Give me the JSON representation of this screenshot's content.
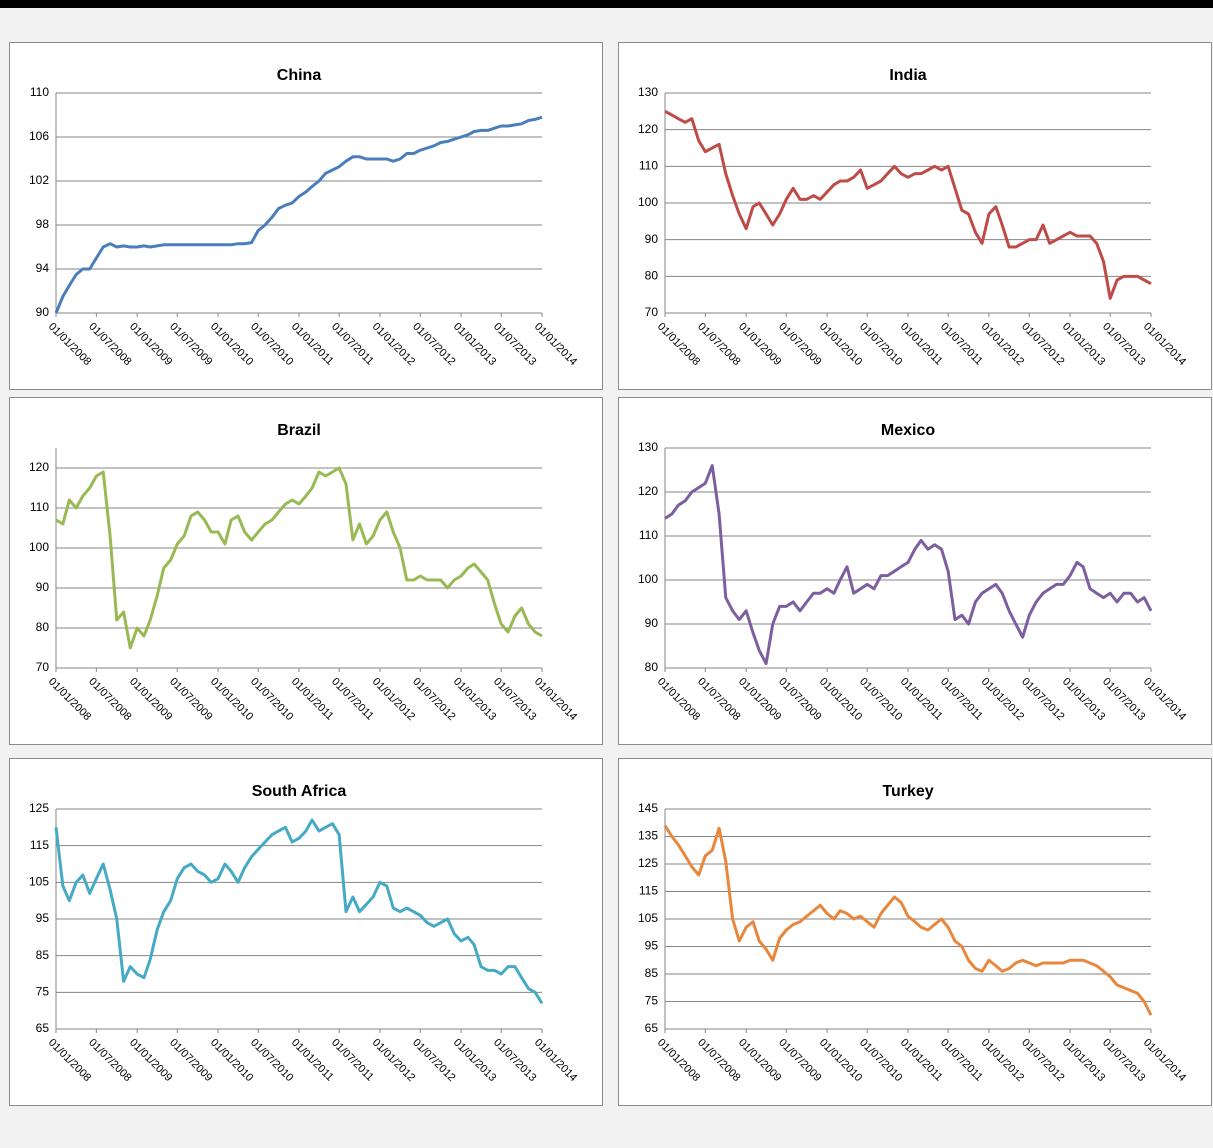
{
  "chart_data": [
    {
      "type": "line",
      "title": "China",
      "color": "#4a7ebb",
      "grid": true,
      "x": [
        "01/01/2008",
        "01/02/2008",
        "01/03/2008",
        "01/04/2008",
        "01/05/2008",
        "01/06/2008",
        "01/07/2008",
        "01/08/2008",
        "01/09/2008",
        "01/10/2008",
        "01/11/2008",
        "01/12/2008",
        "01/01/2009",
        "01/02/2009",
        "01/03/2009",
        "01/04/2009",
        "01/05/2009",
        "01/06/2009",
        "01/07/2009",
        "01/08/2009",
        "01/09/2009",
        "01/10/2009",
        "01/11/2009",
        "01/12/2009",
        "01/01/2010",
        "01/02/2010",
        "01/03/2010",
        "01/04/2010",
        "01/05/2010",
        "01/06/2010",
        "01/07/2010",
        "01/08/2010",
        "01/09/2010",
        "01/10/2010",
        "01/11/2010",
        "01/12/2010",
        "01/01/2011",
        "01/02/2011",
        "01/03/2011",
        "01/04/2011",
        "01/05/2011",
        "01/06/2011",
        "01/07/2011",
        "01/08/2011",
        "01/09/2011",
        "01/10/2011",
        "01/11/2011",
        "01/12/2011",
        "01/01/2012",
        "01/02/2012",
        "01/03/2012",
        "01/04/2012",
        "01/05/2012",
        "01/06/2012",
        "01/07/2012",
        "01/08/2012",
        "01/09/2012",
        "01/10/2012",
        "01/11/2012",
        "01/12/2012",
        "01/01/2013",
        "01/02/2013",
        "01/03/2013",
        "01/04/2013",
        "01/05/2013",
        "01/06/2013",
        "01/07/2013",
        "01/08/2013",
        "01/09/2013",
        "01/10/2013",
        "01/11/2013",
        "01/12/2013",
        "01/01/2014"
      ],
      "values": [
        90,
        91.5,
        92.5,
        93.5,
        94,
        94,
        95,
        96,
        96.3,
        96,
        96.1,
        96,
        96,
        96.1,
        96,
        96.1,
        96.2,
        96.2,
        96.2,
        96.2,
        96.2,
        96.2,
        96.2,
        96.2,
        96.2,
        96.2,
        96.2,
        96.3,
        96.3,
        96.4,
        97.5,
        98,
        98.7,
        99.5,
        99.8,
        100,
        100.6,
        101,
        101.5,
        102,
        102.7,
        103,
        103.3,
        103.8,
        104.2,
        104.2,
        104,
        104,
        104,
        104,
        103.8,
        104,
        104.5,
        104.5,
        104.8,
        105,
        105.2,
        105.5,
        105.6,
        105.8,
        106,
        106.2,
        106.5,
        106.6,
        106.6,
        106.8,
        107,
        107,
        107.1,
        107.2,
        107.5,
        107.6,
        107.8
      ],
      "xlim": [
        "01/01/2008",
        "01/01/2014"
      ],
      "xticks": [
        "01/01/2008",
        "01/07/2008",
        "01/01/2009",
        "01/07/2009",
        "01/01/2010",
        "01/07/2010",
        "01/01/2011",
        "01/07/2011",
        "01/01/2012",
        "01/07/2012",
        "01/01/2013",
        "01/07/2013",
        "01/01/2014"
      ],
      "ylim": [
        90,
        110
      ],
      "yticks": [
        90,
        94,
        98,
        102,
        106,
        110
      ]
    },
    {
      "type": "line",
      "title": "India",
      "color": "#be4b48",
      "grid": true,
      "x": [
        "01/01/2008",
        "01/02/2008",
        "01/03/2008",
        "01/04/2008",
        "01/05/2008",
        "01/06/2008",
        "01/07/2008",
        "01/08/2008",
        "01/09/2008",
        "01/10/2008",
        "01/11/2008",
        "01/12/2008",
        "01/01/2009",
        "01/02/2009",
        "01/03/2009",
        "01/04/2009",
        "01/05/2009",
        "01/06/2009",
        "01/07/2009",
        "01/08/2009",
        "01/09/2009",
        "01/10/2009",
        "01/11/2009",
        "01/12/2009",
        "01/01/2010",
        "01/02/2010",
        "01/03/2010",
        "01/04/2010",
        "01/05/2010",
        "01/06/2010",
        "01/07/2010",
        "01/08/2010",
        "01/09/2010",
        "01/10/2010",
        "01/11/2010",
        "01/12/2010",
        "01/01/2011",
        "01/02/2011",
        "01/03/2011",
        "01/04/2011",
        "01/05/2011",
        "01/06/2011",
        "01/07/2011",
        "01/08/2011",
        "01/09/2011",
        "01/10/2011",
        "01/11/2011",
        "01/12/2011",
        "01/01/2012",
        "01/02/2012",
        "01/03/2012",
        "01/04/2012",
        "01/05/2012",
        "01/06/2012",
        "01/07/2012",
        "01/08/2012",
        "01/09/2012",
        "01/10/2012",
        "01/11/2012",
        "01/12/2012",
        "01/01/2013",
        "01/02/2013",
        "01/03/2013",
        "01/04/2013",
        "01/05/2013",
        "01/06/2013",
        "01/07/2013",
        "01/08/2013",
        "01/09/2013",
        "01/10/2013",
        "01/11/2013",
        "01/12/2013",
        "01/01/2014"
      ],
      "values": [
        125,
        124,
        123,
        122,
        123,
        117,
        114,
        115,
        116,
        108,
        102,
        97,
        93,
        99,
        100,
        97,
        94,
        97,
        101,
        104,
        101,
        101,
        102,
        101,
        103,
        105,
        106,
        106,
        107,
        109,
        104,
        105,
        106,
        108,
        110,
        108,
        107,
        108,
        108,
        109,
        110,
        109,
        110,
        104,
        98,
        97,
        92,
        89,
        97,
        99,
        94,
        88,
        88,
        89,
        90,
        90,
        94,
        89,
        90,
        91,
        92,
        91,
        91,
        91,
        89,
        84,
        74,
        79,
        80,
        80,
        80,
        79,
        78
      ],
      "xlim": [
        "01/01/2008",
        "01/01/2014"
      ],
      "xticks": [
        "01/01/2008",
        "01/07/2008",
        "01/01/2009",
        "01/07/2009",
        "01/01/2010",
        "01/07/2010",
        "01/01/2011",
        "01/07/2011",
        "01/01/2012",
        "01/07/2012",
        "01/01/2013",
        "01/07/2013",
        "01/01/2014"
      ],
      "ylim": [
        70,
        130
      ],
      "yticks": [
        70,
        80,
        90,
        100,
        110,
        120,
        130
      ]
    },
    {
      "type": "line",
      "title": "Brazil",
      "color": "#98b954",
      "grid": true,
      "x": [
        "01/01/2008",
        "01/02/2008",
        "01/03/2008",
        "01/04/2008",
        "01/05/2008",
        "01/06/2008",
        "01/07/2008",
        "01/08/2008",
        "01/09/2008",
        "01/10/2008",
        "01/11/2008",
        "01/12/2008",
        "01/01/2009",
        "01/02/2009",
        "01/03/2009",
        "01/04/2009",
        "01/05/2009",
        "01/06/2009",
        "01/07/2009",
        "01/08/2009",
        "01/09/2009",
        "01/10/2009",
        "01/11/2009",
        "01/12/2009",
        "01/01/2010",
        "01/02/2010",
        "01/03/2010",
        "01/04/2010",
        "01/05/2010",
        "01/06/2010",
        "01/07/2010",
        "01/08/2010",
        "01/09/2010",
        "01/10/2010",
        "01/11/2010",
        "01/12/2010",
        "01/01/2011",
        "01/02/2011",
        "01/03/2011",
        "01/04/2011",
        "01/05/2011",
        "01/06/2011",
        "01/07/2011",
        "01/08/2011",
        "01/09/2011",
        "01/10/2011",
        "01/11/2011",
        "01/12/2011",
        "01/01/2012",
        "01/02/2012",
        "01/03/2012",
        "01/04/2012",
        "01/05/2012",
        "01/06/2012",
        "01/07/2012",
        "01/08/2012",
        "01/09/2012",
        "01/10/2012",
        "01/11/2012",
        "01/12/2012",
        "01/01/2013",
        "01/02/2013",
        "01/03/2013",
        "01/04/2013",
        "01/05/2013",
        "01/06/2013",
        "01/07/2013",
        "01/08/2013",
        "01/09/2013",
        "01/10/2013",
        "01/11/2013",
        "01/12/2013",
        "01/01/2014"
      ],
      "values": [
        107,
        106,
        112,
        110,
        113,
        115,
        118,
        119,
        103,
        82,
        84,
        75,
        80,
        78,
        82,
        88,
        95,
        97,
        101,
        103,
        108,
        109,
        107,
        104,
        104,
        101,
        107,
        108,
        104,
        102,
        104,
        106,
        107,
        109,
        111,
        112,
        111,
        113,
        115,
        119,
        118,
        119,
        120,
        116,
        102,
        106,
        101,
        103,
        107,
        109,
        104,
        100,
        92,
        92,
        93,
        92,
        92,
        92,
        90,
        92,
        93,
        95,
        96,
        94,
        92,
        86,
        81,
        79,
        83,
        85,
        81,
        79,
        78
      ],
      "xlim": [
        "01/01/2008",
        "01/01/2014"
      ],
      "xticks": [
        "01/01/2008",
        "01/07/2008",
        "01/01/2009",
        "01/07/2009",
        "01/01/2010",
        "01/07/2010",
        "01/01/2011",
        "01/07/2011",
        "01/01/2012",
        "01/07/2012",
        "01/01/2013",
        "01/07/2013",
        "01/01/2014"
      ],
      "ylim": [
        70,
        125
      ],
      "yticks": [
        70,
        80,
        90,
        100,
        110,
        120
      ]
    },
    {
      "type": "line",
      "title": "Mexico",
      "color": "#7d5fa0",
      "grid": true,
      "x": [
        "01/01/2008",
        "01/02/2008",
        "01/03/2008",
        "01/04/2008",
        "01/05/2008",
        "01/06/2008",
        "01/07/2008",
        "01/08/2008",
        "01/09/2008",
        "01/10/2008",
        "01/11/2008",
        "01/12/2008",
        "01/01/2009",
        "01/02/2009",
        "01/03/2009",
        "01/04/2009",
        "01/05/2009",
        "01/06/2009",
        "01/07/2009",
        "01/08/2009",
        "01/09/2009",
        "01/10/2009",
        "01/11/2009",
        "01/12/2009",
        "01/01/2010",
        "01/02/2010",
        "01/03/2010",
        "01/04/2010",
        "01/05/2010",
        "01/06/2010",
        "01/07/2010",
        "01/08/2010",
        "01/09/2010",
        "01/10/2010",
        "01/11/2010",
        "01/12/2010",
        "01/01/2011",
        "01/02/2011",
        "01/03/2011",
        "01/04/2011",
        "01/05/2011",
        "01/06/2011",
        "01/07/2011",
        "01/08/2011",
        "01/09/2011",
        "01/10/2011",
        "01/11/2011",
        "01/12/2011",
        "01/01/2012",
        "01/02/2012",
        "01/03/2012",
        "01/04/2012",
        "01/05/2012",
        "01/06/2012",
        "01/07/2012",
        "01/08/2012",
        "01/09/2012",
        "01/10/2012",
        "01/11/2012",
        "01/12/2012",
        "01/01/2013",
        "01/02/2013",
        "01/03/2013",
        "01/04/2013",
        "01/05/2013",
        "01/06/2013",
        "01/07/2013",
        "01/08/2013",
        "01/09/2013",
        "01/10/2013",
        "01/11/2013",
        "01/12/2013",
        "01/01/2014"
      ],
      "values": [
        114,
        115,
        117,
        118,
        120,
        121,
        122,
        126,
        115,
        96,
        93,
        91,
        93,
        88,
        84,
        81,
        90,
        94,
        94,
        95,
        93,
        95,
        97,
        97,
        98,
        97,
        100,
        103,
        97,
        98,
        99,
        98,
        101,
        101,
        102,
        103,
        104,
        107,
        109,
        107,
        108,
        107,
        102,
        91,
        92,
        90,
        95,
        97,
        98,
        99,
        97,
        93,
        90,
        87,
        92,
        95,
        97,
        98,
        99,
        99,
        101,
        104,
        103,
        98,
        97,
        96,
        97,
        95,
        97,
        97,
        95,
        96,
        93
      ],
      "xlim": [
        "01/01/2008",
        "01/01/2014"
      ],
      "xticks": [
        "01/01/2008",
        "01/07/2008",
        "01/01/2009",
        "01/07/2009",
        "01/01/2010",
        "01/07/2010",
        "01/01/2011",
        "01/07/2011",
        "01/01/2012",
        "01/07/2012",
        "01/01/2013",
        "01/07/2013",
        "01/01/2014"
      ],
      "ylim": [
        80,
        130
      ],
      "yticks": [
        80,
        90,
        100,
        110,
        120,
        130
      ]
    },
    {
      "type": "line",
      "title": "South Africa",
      "color": "#46aac5",
      "grid": true,
      "x": [
        "01/01/2008",
        "01/02/2008",
        "01/03/2008",
        "01/04/2008",
        "01/05/2008",
        "01/06/2008",
        "01/07/2008",
        "01/08/2008",
        "01/09/2008",
        "01/10/2008",
        "01/11/2008",
        "01/12/2008",
        "01/01/2009",
        "01/02/2009",
        "01/03/2009",
        "01/04/2009",
        "01/05/2009",
        "01/06/2009",
        "01/07/2009",
        "01/08/2009",
        "01/09/2009",
        "01/10/2009",
        "01/11/2009",
        "01/12/2009",
        "01/01/2010",
        "01/02/2010",
        "01/03/2010",
        "01/04/2010",
        "01/05/2010",
        "01/06/2010",
        "01/07/2010",
        "01/08/2010",
        "01/09/2010",
        "01/10/2010",
        "01/11/2010",
        "01/12/2010",
        "01/01/2011",
        "01/02/2011",
        "01/03/2011",
        "01/04/2011",
        "01/05/2011",
        "01/06/2011",
        "01/07/2011",
        "01/08/2011",
        "01/09/2011",
        "01/10/2011",
        "01/11/2011",
        "01/12/2011",
        "01/01/2012",
        "01/02/2012",
        "01/03/2012",
        "01/04/2012",
        "01/05/2012",
        "01/06/2012",
        "01/07/2012",
        "01/08/2012",
        "01/09/2012",
        "01/10/2012",
        "01/11/2012",
        "01/12/2012",
        "01/01/2013",
        "01/02/2013",
        "01/03/2013",
        "01/04/2013",
        "01/05/2013",
        "01/06/2013",
        "01/07/2013",
        "01/08/2013",
        "01/09/2013",
        "01/10/2013",
        "01/11/2013",
        "01/12/2013",
        "01/01/2014"
      ],
      "values": [
        120,
        104,
        100,
        105,
        107,
        102,
        106,
        110,
        103,
        95,
        78,
        82,
        80,
        79,
        84,
        92,
        97,
        100,
        106,
        109,
        110,
        108,
        107,
        105,
        106,
        110,
        108,
        105,
        109,
        112,
        114,
        116,
        118,
        119,
        120,
        116,
        117,
        119,
        122,
        119,
        120,
        121,
        118,
        97,
        101,
        97,
        99,
        101,
        105,
        104,
        98,
        97,
        98,
        97,
        96,
        94,
        93,
        94,
        95,
        91,
        89,
        90,
        88,
        82,
        81,
        81,
        80,
        82,
        82,
        79,
        76,
        75,
        72
      ],
      "xlim": [
        "01/01/2008",
        "01/01/2014"
      ],
      "xticks": [
        "01/01/2008",
        "01/07/2008",
        "01/01/2009",
        "01/07/2009",
        "01/01/2010",
        "01/07/2010",
        "01/01/2011",
        "01/07/2011",
        "01/01/2012",
        "01/07/2012",
        "01/01/2013",
        "01/07/2013",
        "01/01/2014"
      ],
      "ylim": [
        65,
        125
      ],
      "yticks": [
        65,
        75,
        85,
        95,
        105,
        115,
        125
      ]
    },
    {
      "type": "line",
      "title": "Turkey",
      "color": "#e8873c",
      "grid": true,
      "x": [
        "01/01/2008",
        "01/02/2008",
        "01/03/2008",
        "01/04/2008",
        "01/05/2008",
        "01/06/2008",
        "01/07/2008",
        "01/08/2008",
        "01/09/2008",
        "01/10/2008",
        "01/11/2008",
        "01/12/2008",
        "01/01/2009",
        "01/02/2009",
        "01/03/2009",
        "01/04/2009",
        "01/05/2009",
        "01/06/2009",
        "01/07/2009",
        "01/08/2009",
        "01/09/2009",
        "01/10/2009",
        "01/11/2009",
        "01/12/2009",
        "01/01/2010",
        "01/02/2010",
        "01/03/2010",
        "01/04/2010",
        "01/05/2010",
        "01/06/2010",
        "01/07/2010",
        "01/08/2010",
        "01/09/2010",
        "01/10/2010",
        "01/11/2010",
        "01/12/2010",
        "01/01/2011",
        "01/02/2011",
        "01/03/2011",
        "01/04/2011",
        "01/05/2011",
        "01/06/2011",
        "01/07/2011",
        "01/08/2011",
        "01/09/2011",
        "01/10/2011",
        "01/11/2011",
        "01/12/2011",
        "01/01/2012",
        "01/02/2012",
        "01/03/2012",
        "01/04/2012",
        "01/05/2012",
        "01/06/2012",
        "01/07/2012",
        "01/08/2012",
        "01/09/2012",
        "01/10/2012",
        "01/11/2012",
        "01/12/2012",
        "01/01/2013",
        "01/02/2013",
        "01/03/2013",
        "01/04/2013",
        "01/05/2013",
        "01/06/2013",
        "01/07/2013",
        "01/08/2013",
        "01/09/2013",
        "01/10/2013",
        "01/11/2013",
        "01/12/2013",
        "01/01/2014"
      ],
      "values": [
        139,
        135,
        132,
        128,
        124,
        121,
        128,
        130,
        138,
        126,
        105,
        97,
        102,
        104,
        97,
        94,
        90,
        98,
        101,
        103,
        104,
        106,
        108,
        110,
        107,
        105,
        108,
        107,
        105,
        106,
        104,
        102,
        107,
        110,
        113,
        111,
        106,
        104,
        102,
        101,
        103,
        105,
        102,
        97,
        95,
        90,
        87,
        86,
        90,
        88,
        86,
        87,
        89,
        90,
        89,
        88,
        89,
        89,
        89,
        89,
        90,
        90,
        90,
        89,
        88,
        86,
        84,
        81,
        80,
        79,
        78,
        75,
        70
      ],
      "xlim": [
        "01/01/2008",
        "01/01/2014"
      ],
      "xticks": [
        "01/01/2008",
        "01/07/2008",
        "01/01/2009",
        "01/07/2009",
        "01/01/2010",
        "01/07/2010",
        "01/01/2011",
        "01/07/2011",
        "01/01/2012",
        "01/07/2012",
        "01/01/2013",
        "01/07/2013",
        "01/01/2014"
      ],
      "ylim": [
        65,
        145
      ],
      "yticks": [
        65,
        75,
        85,
        95,
        105,
        115,
        125,
        135,
        145
      ]
    }
  ]
}
